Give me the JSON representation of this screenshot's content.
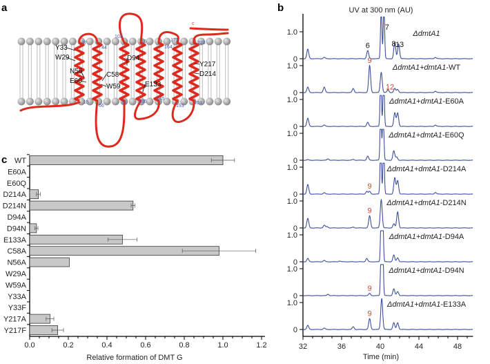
{
  "panels": {
    "a": {
      "label": "a",
      "c_terminus": "c",
      "residues": [
        "Y33",
        "W29",
        "N56",
        "E60",
        "C58",
        "W59",
        "D94",
        "E133",
        "Y217",
        "D214"
      ],
      "positions": [
        "37",
        "44",
        "103",
        "116",
        "164",
        "171",
        "223",
        "15",
        "66",
        "81",
        "135",
        "145",
        "193",
        "203"
      ],
      "colors": {
        "helix": "#dd2a1e",
        "lipid_head": "#8a8a8a",
        "position_number": "#4a5fb0"
      }
    },
    "b": {
      "label": "b"
    },
    "c": {
      "label": "c"
    }
  },
  "chart_data": [
    {
      "type": "line",
      "panel": "b",
      "title": "UV at 300 nm (AU)",
      "xlabel": "Time (min)",
      "xlim": [
        32,
        49.6
      ],
      "xticks": [
        "32",
        "36",
        "40",
        "44",
        "48"
      ],
      "yticks": [
        "0",
        "1.0"
      ],
      "line_color": "#3b4d9c",
      "series": [
        {
          "name_italic": "ΔdmtA1",
          "name_suffix": "",
          "peaks": [
            [
              32.5,
              0.35
            ],
            [
              34.2,
              0.05
            ],
            [
              38.7,
              0.3
            ],
            [
              40.1,
              2.0
            ],
            [
              40.38,
              2.0
            ],
            [
              41.5,
              0.6
            ],
            [
              41.9,
              0.55
            ],
            [
              45.7,
              0.05
            ]
          ],
          "peak_labels": [
            {
              "text": "6",
              "time": 38.7,
              "color": "#111111"
            },
            {
              "text": "7",
              "time": 40.7,
              "color": "#111111"
            },
            {
              "text": "8",
              "time": 41.4,
              "color": "#111111"
            },
            {
              "text": "13",
              "time": 42.0,
              "color": "#111111"
            }
          ]
        },
        {
          "name_italic": "ΔdmtA1+dmtA1",
          "name_suffix": "-WT",
          "peaks": [
            [
              32.5,
              0.2
            ],
            [
              34.2,
              0.2
            ],
            [
              37.2,
              0.15
            ],
            [
              38.9,
              1.0
            ],
            [
              40.1,
              0.75
            ],
            [
              40.8,
              0.1
            ],
            [
              41.5,
              0.15
            ],
            [
              41.8,
              0.12
            ],
            [
              45.7,
              0.05
            ]
          ],
          "peak_labels": [
            {
              "text": "9",
              "time": 38.9,
              "color": "#d9442e"
            },
            {
              "text": "12",
              "time": 41.0,
              "color": "#d9442e"
            }
          ]
        },
        {
          "name_italic": "ΔdmtA1+dmtA1",
          "name_suffix": "-E60A",
          "peaks": [
            [
              32.5,
              0.3
            ],
            [
              34.2,
              0.05
            ],
            [
              38.7,
              0.15
            ],
            [
              40.05,
              2.0
            ],
            [
              40.35,
              2.0
            ],
            [
              41.5,
              0.5
            ],
            [
              41.8,
              0.5
            ],
            [
              45.7,
              0.05
            ]
          ],
          "peak_labels": []
        },
        {
          "name_italic": "ΔdmtA1+dmtA1",
          "name_suffix": "-E60Q",
          "peaks": [
            [
              32.5,
              0.02
            ],
            [
              34.6,
              0.05
            ],
            [
              37.2,
              0.03
            ],
            [
              38.7,
              0.15
            ],
            [
              40.05,
              2.0
            ],
            [
              40.3,
              2.0
            ],
            [
              41.4,
              0.35
            ],
            [
              41.7,
              0.12
            ]
          ],
          "peak_labels": []
        },
        {
          "name_italic": "ΔdmtA1+dmtA1",
          "name_suffix": "-D214A",
          "peaks": [
            [
              32.5,
              0.35
            ],
            [
              34.2,
              0.05
            ],
            [
              38.6,
              0.1
            ],
            [
              38.9,
              0.1
            ],
            [
              40.05,
              2.0
            ],
            [
              40.35,
              2.0
            ],
            [
              41.5,
              0.6
            ],
            [
              41.8,
              0.5
            ],
            [
              45.7,
              0.06
            ]
          ],
          "peak_labels": [
            {
              "text": "9",
              "time": 38.9,
              "color": "#d9442e"
            }
          ]
        },
        {
          "name_italic": "ΔdmtA1+dmtA1",
          "name_suffix": "-D214N",
          "peaks": [
            [
              32.5,
              0.35
            ],
            [
              34.2,
              0.1
            ],
            [
              34.5,
              0.05
            ],
            [
              37.2,
              0.03
            ],
            [
              38.9,
              0.45
            ],
            [
              40.1,
              1.05
            ],
            [
              41.4,
              0.15
            ],
            [
              41.8,
              0.6
            ]
          ],
          "peak_labels": [
            {
              "text": "9",
              "time": 38.9,
              "color": "#d9442e"
            }
          ]
        },
        {
          "name_italic": "ΔdmtA1+dmtA1",
          "name_suffix": "-D94A",
          "peaks": [
            [
              32.5,
              0.12
            ],
            [
              34.2,
              0.05
            ],
            [
              35.8,
              0.03
            ],
            [
              38.6,
              0.12
            ],
            [
              40.1,
              2.0
            ],
            [
              40.25,
              2.0
            ],
            [
              41.4,
              0.25
            ],
            [
              41.8,
              0.15
            ]
          ],
          "peak_labels": []
        },
        {
          "name_italic": "ΔdmtA1+dmtA1",
          "name_suffix": "-D94N",
          "peaks": [
            [
              34.6,
              0.05
            ],
            [
              38.9,
              0.08
            ],
            [
              40.1,
              2.0
            ],
            [
              40.25,
              2.0
            ],
            [
              41.4,
              0.25
            ],
            [
              41.8,
              0.15
            ]
          ],
          "peak_labels": [
            {
              "text": "9",
              "time": 38.9,
              "color": "#d9442e"
            }
          ]
        },
        {
          "name_italic": "ΔdmtA1+dmtA1",
          "name_suffix": "-E133A",
          "peaks": [
            [
              32.5,
              0.15
            ],
            [
              34.2,
              0.05
            ],
            [
              37.2,
              0.1
            ],
            [
              38.9,
              0.4
            ],
            [
              40.15,
              1.15
            ],
            [
              41.4,
              0.25
            ],
            [
              41.8,
              0.25
            ]
          ],
          "peak_labels": [
            {
              "text": "9",
              "time": 38.9,
              "color": "#d9442e"
            }
          ]
        }
      ]
    },
    {
      "type": "bar",
      "panel": "c",
      "orientation": "horizontal",
      "xlabel": "Relative formation of DMT G",
      "xlim": [
        0,
        1.2
      ],
      "xticks": [
        "0.0",
        "0.2",
        "0.4",
        "0.6",
        "0.8",
        "1.0",
        "1.2"
      ],
      "categories": [
        "WT",
        "E60A",
        "E60Q",
        "D214A",
        "D214N",
        "D94A",
        "D94N",
        "E133A",
        "C58A",
        "N56A",
        "W29A",
        "W59A",
        "Y33A",
        "Y33F",
        "Y217A",
        "Y217F"
      ],
      "values": [
        1.0,
        0,
        0,
        0.045,
        0.535,
        0,
        0.035,
        0.48,
        0.98,
        0.205,
        0,
        0,
        0,
        0,
        0.105,
        0.145
      ],
      "errors": [
        0.06,
        0,
        0,
        0.01,
        0.01,
        0,
        0.008,
        0.075,
        0.19,
        0,
        0,
        0,
        0,
        0,
        0.02,
        0.03
      ],
      "bar_color": "#c8c8c8"
    }
  ]
}
